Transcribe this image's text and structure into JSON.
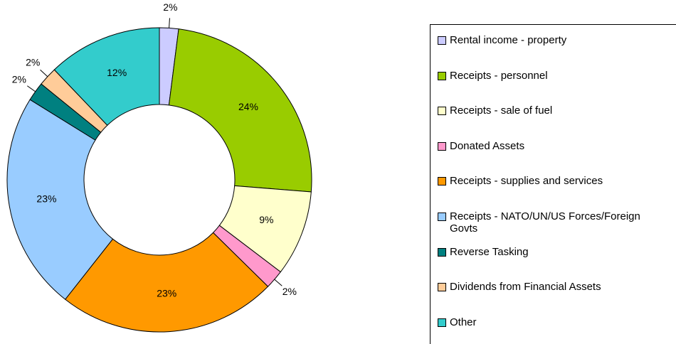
{
  "chart_data": {
    "type": "donut",
    "categories": [
      "Rental income - property",
      "Receipts - personnel",
      "Receipts - sale of fuel",
      "Donated Assets",
      "Receipts - supplies and services",
      "Receipts - NATO/UN/US Forces/Foreign Govts",
      "Reverse Tasking",
      "Dividends from Financial Assets",
      "Other"
    ],
    "values": [
      2,
      24,
      9,
      2,
      23,
      23,
      2,
      2,
      12
    ],
    "value_labels": [
      "2%",
      "24%",
      "9%",
      "2%",
      "23%",
      "23%",
      "2%",
      "2%",
      "12%"
    ],
    "colors": [
      "#ccccff",
      "#99cc00",
      "#ffffcc",
      "#ff99cc",
      "#ff9900",
      "#99ccff",
      "#008080",
      "#ffcc99",
      "#33cccc"
    ],
    "legend": "right"
  }
}
